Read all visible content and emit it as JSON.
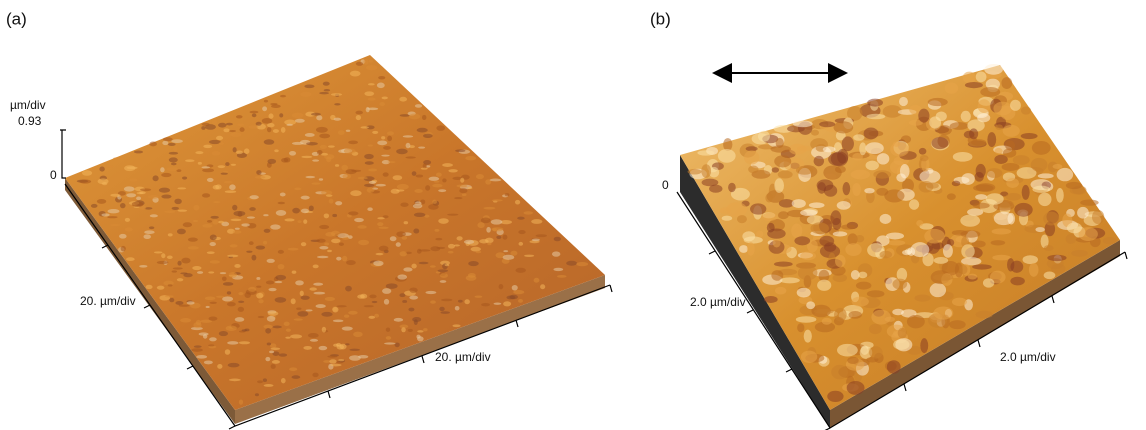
{
  "panels": [
    {
      "label": "(a)",
      "z_unit": "µm/div",
      "z_max": "0.93",
      "z_min": "0",
      "y_axis": "20. µm/div",
      "x_axis": "20. µm/div"
    },
    {
      "label": "(b)",
      "z_min": "0",
      "y_axis": "2.0 µm/div",
      "x_axis": "2.0 µm/div"
    }
  ]
}
